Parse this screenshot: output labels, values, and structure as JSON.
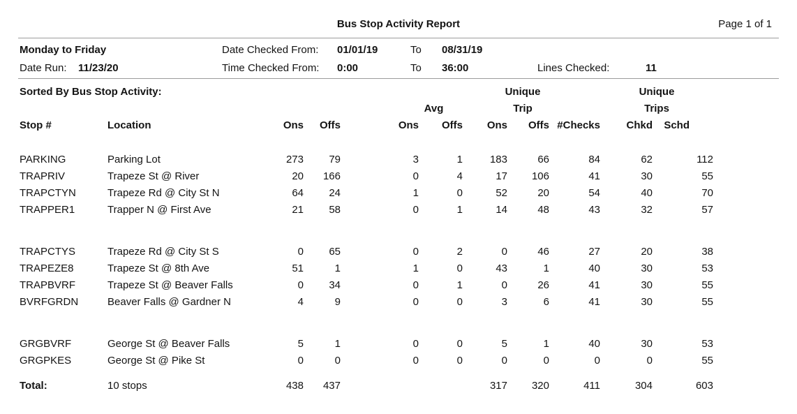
{
  "report": {
    "title": "Bus Stop Activity Report",
    "page_label": "Page 1 of 1",
    "service_days": "Monday to Friday",
    "date_run_label": "Date Run:",
    "date_run_value": "11/23/20",
    "date_checked_from_label": "Date Checked From:",
    "date_checked_from_value": "01/01/19",
    "date_checked_to_label": "To",
    "date_checked_to_value": "08/31/19",
    "time_checked_from_label": "Time Checked From:",
    "time_checked_from_value": "0:00",
    "time_checked_to_label": "To",
    "time_checked_to_value": "36:00",
    "lines_checked_label": "Lines Checked:",
    "lines_checked_value": "11",
    "sorted_by_label": "Sorted By Bus Stop Activity:"
  },
  "table": {
    "group_headers": {
      "avg": "Avg",
      "unique_trip": [
        "Unique",
        "Trip"
      ],
      "unique_trips": [
        "Unique",
        "Trips"
      ]
    },
    "columns": [
      "Stop #",
      "Location",
      "Ons",
      "Offs",
      "Ons",
      "Offs",
      "Ons",
      "Offs",
      "#Checks",
      "Chkd",
      "Schd"
    ],
    "groups": [
      [
        [
          "PARKING",
          "Parking Lot",
          "273",
          "79",
          "3",
          "1",
          "183",
          "66",
          "84",
          "62",
          "112"
        ],
        [
          "TRAPRIV",
          "Trapeze St @ River",
          "20",
          "166",
          "0",
          "4",
          "17",
          "106",
          "41",
          "30",
          "55"
        ],
        [
          "TRAPCTYN",
          "Trapeze Rd @ City St N",
          "64",
          "24",
          "1",
          "0",
          "52",
          "20",
          "54",
          "40",
          "70"
        ],
        [
          "TRAPPER1",
          "Trapper N @ First Ave",
          "21",
          "58",
          "0",
          "1",
          "14",
          "48",
          "43",
          "32",
          "57"
        ]
      ],
      [
        [
          "TRAPCTYS",
          "Trapeze Rd @ City St S",
          "0",
          "65",
          "0",
          "2",
          "0",
          "46",
          "27",
          "20",
          "38"
        ],
        [
          "TRAPEZE8",
          "Trapeze St @ 8th Ave",
          "51",
          "1",
          "1",
          "0",
          "43",
          "1",
          "40",
          "30",
          "53"
        ],
        [
          "TRAPBVRF",
          "Trapeze St @ Beaver Falls",
          "0",
          "34",
          "0",
          "1",
          "0",
          "26",
          "41",
          "30",
          "55"
        ],
        [
          "BVRFGRDN",
          "Beaver Falls @ Gardner N",
          "4",
          "9",
          "0",
          "0",
          "3",
          "6",
          "41",
          "30",
          "55"
        ]
      ],
      [
        [
          "GRGBVRF",
          "George St @ Beaver Falls",
          "5",
          "1",
          "0",
          "0",
          "5",
          "1",
          "40",
          "30",
          "53"
        ],
        [
          "GRGPKES",
          "George St @ Pike St",
          "0",
          "0",
          "0",
          "0",
          "0",
          "0",
          "0",
          "0",
          "55"
        ]
      ]
    ],
    "total_row": [
      "Total:",
      "10 stops",
      "438",
      "437",
      "",
      "",
      "317",
      "320",
      "411",
      "304",
      "603"
    ]
  }
}
